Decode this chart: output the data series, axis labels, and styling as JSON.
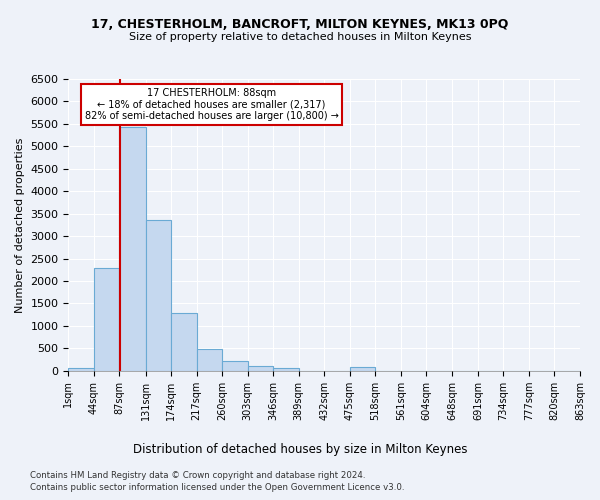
{
  "title1": "17, CHESTERHOLM, BANCROFT, MILTON KEYNES, MK13 0PQ",
  "title2": "Size of property relative to detached houses in Milton Keynes",
  "xlabel": "Distribution of detached houses by size in Milton Keynes",
  "ylabel": "Number of detached properties",
  "footer1": "Contains HM Land Registry data © Crown copyright and database right 2024.",
  "footer2": "Contains public sector information licensed under the Open Government Licence v3.0.",
  "annotation_title": "17 CHESTERHOLM: 88sqm",
  "annotation_line1": "← 18% of detached houses are smaller (2,317)",
  "annotation_line2": "82% of semi-detached houses are larger (10,800) →",
  "property_sqm": 88,
  "bin_edges": [
    1,
    44,
    87,
    131,
    174,
    217,
    260,
    303,
    346,
    389,
    432,
    475,
    518,
    561,
    604,
    648,
    691,
    734,
    777,
    820,
    863
  ],
  "bar_values": [
    70,
    2280,
    5430,
    3360,
    1290,
    480,
    215,
    100,
    55,
    0,
    0,
    75,
    0,
    0,
    0,
    0,
    0,
    0,
    0,
    0
  ],
  "bar_color": "#c5d8ef",
  "bar_edge_color": "#6aaad4",
  "vline_color": "#cc0000",
  "annotation_box_edge": "#cc0000",
  "background_color": "#eef2f9",
  "grid_color": "#ffffff",
  "ylim": [
    0,
    6500
  ],
  "yticks": [
    0,
    500,
    1000,
    1500,
    2000,
    2500,
    3000,
    3500,
    4000,
    4500,
    5000,
    5500,
    6000,
    6500
  ]
}
